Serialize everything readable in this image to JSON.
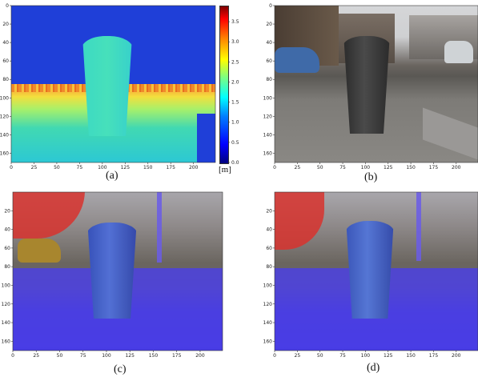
{
  "panels": [
    {
      "id": "a",
      "caption": "(a)",
      "xticks": [
        "0",
        "25",
        "50",
        "75",
        "100",
        "125",
        "150",
        "175",
        "200"
      ],
      "yticks": [
        "0",
        "20",
        "40",
        "60",
        "80",
        "100",
        "120",
        "140",
        "160"
      ],
      "colorbar": {
        "ticks": [
          "0.0",
          "0.5",
          "1.0",
          "1.5",
          "2.0",
          "2.5",
          "3.0",
          "3.5"
        ],
        "unit": "[m]",
        "colors": [
          "#00007f",
          "#0000ff",
          "#007fff",
          "#00ffff",
          "#7fff7f",
          "#ffff00",
          "#ff7f00",
          "#ff0000",
          "#7f0000"
        ]
      }
    },
    {
      "id": "b",
      "caption": "(b)",
      "xticks": [
        "0",
        "25",
        "50",
        "75",
        "100",
        "125",
        "150",
        "175",
        "200"
      ],
      "yticks": [
        "0",
        "20",
        "40",
        "60",
        "80",
        "100",
        "120",
        "140",
        "160"
      ]
    },
    {
      "id": "c",
      "caption": "(c)",
      "xticks": [
        "0",
        "25",
        "50",
        "75",
        "100",
        "125",
        "150",
        "175",
        "200"
      ],
      "yticks": [
        "20",
        "40",
        "60",
        "80",
        "100",
        "120",
        "140",
        "160"
      ]
    },
    {
      "id": "d",
      "caption": "(d)",
      "xticks": [
        "0",
        "25",
        "50",
        "75",
        "100",
        "125",
        "150",
        "175",
        "200"
      ],
      "yticks": [
        "20",
        "40",
        "60",
        "80",
        "100",
        "120",
        "140",
        "160"
      ]
    }
  ],
  "colors": {
    "depth_background": "#1f3fd8",
    "depth_near": "#35d6c6",
    "depth_mid": "#f5c23a",
    "overlay_blue": "#4b3cf0",
    "overlay_red": "#d8322e"
  }
}
